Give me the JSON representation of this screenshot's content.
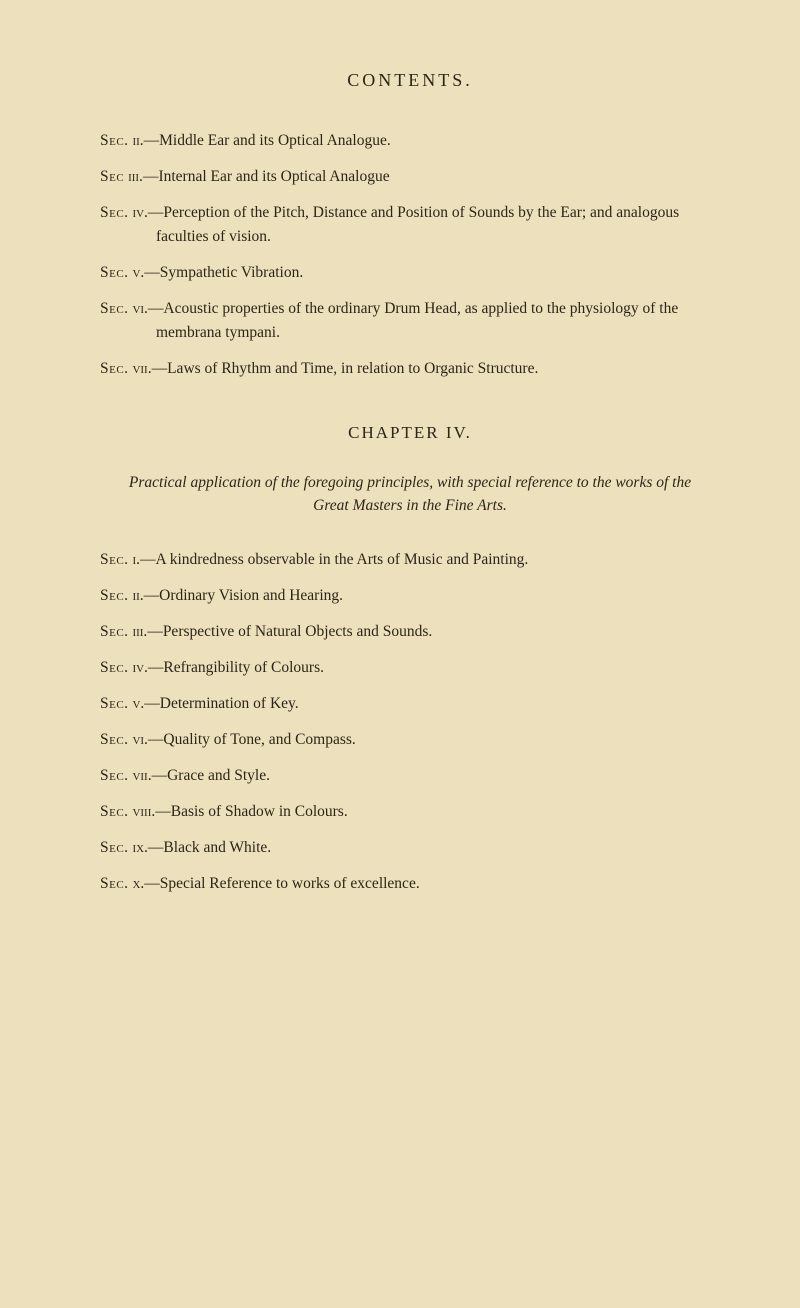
{
  "page": {
    "header": "CONTENTS.",
    "background_color": "#ede1bd",
    "text_color": "#2b2518",
    "font_family": "Times New Roman",
    "body_fontsize": 15.5,
    "header_fontsize": 18,
    "chapter_fontsize": 17
  },
  "block1": {
    "entries": [
      {
        "label": "Sec.",
        "num": "ii.",
        "text": "—Middle Ear and its Optical Analogue."
      },
      {
        "label": "Sec",
        "num": "iii.",
        "text": "—Internal Ear and its Optical Analogue"
      },
      {
        "label": "Sec.",
        "num": "iv.",
        "text": "—Perception of the Pitch, Distance and Position of Sounds by the Ear; and analogous faculties of vision."
      },
      {
        "label": "Sec.",
        "num": "v.",
        "text": "—Sympathetic Vibration."
      },
      {
        "label": "Sec.",
        "num": "vi.",
        "text": "—Acoustic properties of the ordinary Drum Head, as applied to the physiology of the membrana tympani."
      },
      {
        "label": "Sec.",
        "num": "vii.",
        "text": "—Laws of Rhythm and Time, in relation to Organic Structure."
      }
    ]
  },
  "chapter": {
    "title": "CHAPTER IV.",
    "subtitle": "Practical application of the foregoing principles, with special reference to the works of the Great Masters in the Fine Arts."
  },
  "block2": {
    "entries": [
      {
        "label": "Sec.",
        "num": "i.",
        "text": "—A kindredness observable in the Arts of Music and Painting."
      },
      {
        "label": "Sec.",
        "num": "ii.",
        "text": "—Ordinary Vision and Hearing."
      },
      {
        "label": "Sec.",
        "num": "iii.",
        "text": "—Perspective of Natural Objects and Sounds."
      },
      {
        "label": "Sec.",
        "num": "iv.",
        "text": "—Refrangibility of Colours."
      },
      {
        "label": "Sec.",
        "num": "v.",
        "text": "—Determination of Key."
      },
      {
        "label": "Sec.",
        "num": "vi.",
        "text": "—Quality of Tone, and Compass."
      },
      {
        "label": "Sec.",
        "num": "vii.",
        "text": "—Grace and Style."
      },
      {
        "label": "Sec.",
        "num": "viii.",
        "text": "—Basis of Shadow in Colours."
      },
      {
        "label": "Sec.",
        "num": "ix.",
        "text": "—Black and White."
      },
      {
        "label": "Sec.",
        "num": "x.",
        "text": "—Special Reference to works of excellence."
      }
    ]
  }
}
